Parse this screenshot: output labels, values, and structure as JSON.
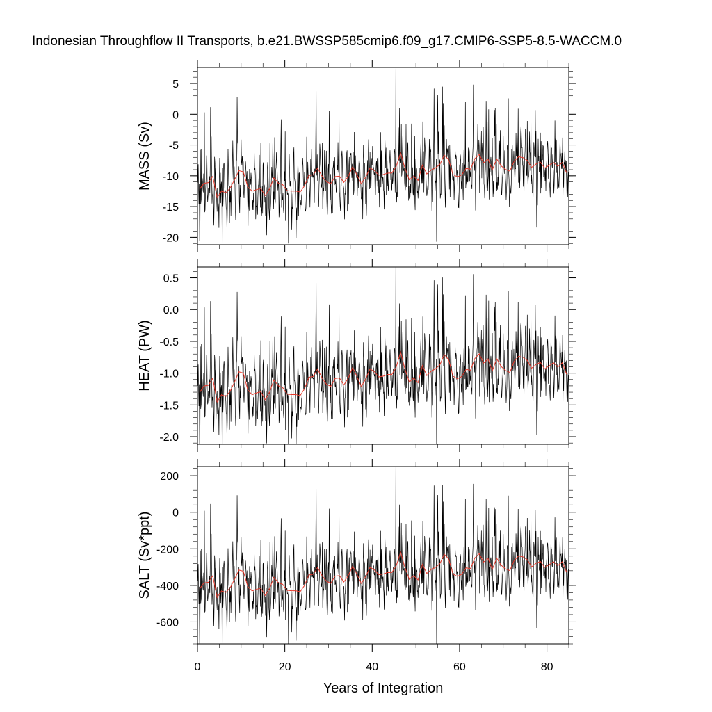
{
  "title": "Indonesian Throughflow II Transports, b.e21.BWSSP585cmip6.f09_g17.CMIP6-SSP5-8.5-WACCM.0",
  "chart_data": {
    "type": "line",
    "xlabel": "Years of Integration",
    "xlim": [
      0,
      85
    ],
    "xticks": [
      0,
      20,
      40,
      60,
      80
    ],
    "line_colors": {
      "raw": "#000000",
      "smoothed": "#e8382a"
    },
    "panels": [
      {
        "key": "mass",
        "ylabel": "MASS (Sv)",
        "ylim": [
          -21.2,
          7.6
        ],
        "yticks": [
          5,
          0,
          -5,
          -10,
          -15,
          -20
        ],
        "ytick_labels": [
          "5",
          "0",
          "-5",
          "-10",
          "-15",
          "-20"
        ],
        "series": [
          {
            "role": "raw",
            "x_start": 0,
            "x_step": 0.0833333,
            "values": []
          },
          {
            "role": "smoothed",
            "x": [],
            "values": []
          }
        ]
      },
      {
        "key": "heat",
        "ylabel": "HEAT (PW)",
        "ylim": [
          -2.12,
          0.67
        ],
        "yticks": [
          0.5,
          0.0,
          -0.5,
          -1.0,
          -1.5,
          -2.0
        ],
        "ytick_labels": [
          "0.5",
          "0.0",
          "-0.5",
          "-1.0",
          "-1.5",
          "-2.0"
        ],
        "series": [
          {
            "role": "raw",
            "x_start": 0,
            "x_step": 0.0833333,
            "values": []
          },
          {
            "role": "smoothed",
            "x": [],
            "values": []
          }
        ]
      },
      {
        "key": "salt",
        "ylabel": "SALT (Sv*ppt)",
        "ylim": [
          -720,
          250
        ],
        "yticks": [
          200,
          0,
          -200,
          -400,
          -600
        ],
        "ytick_labels": [
          "200",
          "0",
          "-200",
          "-400",
          "-600"
        ],
        "series": [
          {
            "role": "raw",
            "x_start": 0,
            "x_step": 0.0833333,
            "values": []
          },
          {
            "role": "smoothed",
            "x": [],
            "values": []
          }
        ]
      }
    ]
  }
}
